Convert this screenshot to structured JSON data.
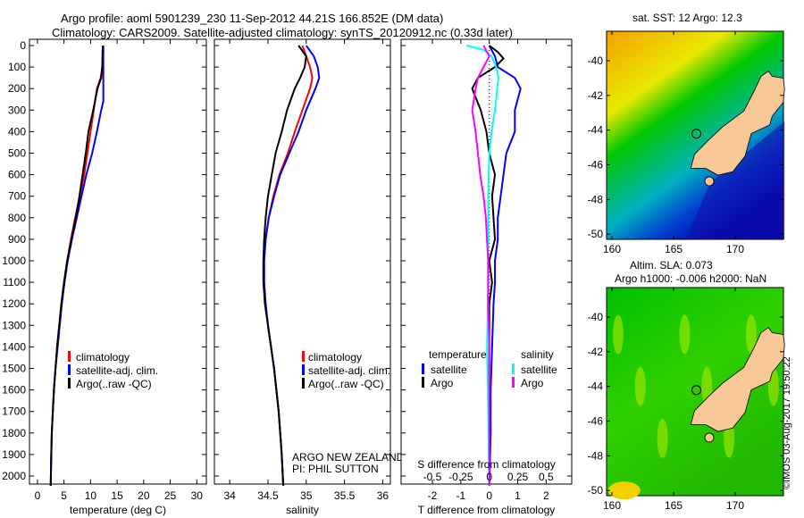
{
  "title_line1": "Argo profile: aoml 5901239_230 11-Sep-2012 44.21S 166.852E (DM data)",
  "title_line2": "Climatology: CARS2009. Satellite-adjusted climatology: synTS_20120912.nc (0.33d later)",
  "colors": {
    "climatology": "#ff0000",
    "satellite": "#0000ff",
    "argo": "#000000",
    "sal_sat": "#00ffff",
    "sal_argo": "#ff00ff"
  },
  "chart_data": [
    {
      "type": "line",
      "name": "temperature",
      "xlabel": "temperature (deg C)",
      "ylabel": "",
      "xlim": [
        -1.5,
        31.8
      ],
      "ylim": [
        2045,
        0
      ],
      "xticks": [
        0,
        5,
        10,
        15,
        20,
        25,
        30
      ],
      "yticks": [
        0,
        100,
        200,
        300,
        400,
        500,
        600,
        700,
        800,
        900,
        1000,
        1100,
        1200,
        1300,
        1400,
        1500,
        1600,
        1700,
        1800,
        1900,
        2000
      ],
      "legend": [
        "climatology",
        "satellite-adj. clim.",
        "Argo(..raw -QC)"
      ],
      "series": [
        {
          "name": "climatology",
          "p": [
            0,
            100,
            150,
            200,
            300,
            400,
            500,
            600,
            700,
            800,
            900,
            1000,
            1100,
            1200,
            1300,
            1400,
            1500,
            1600,
            1700,
            1800,
            1900,
            2045
          ],
          "v": [
            12.3,
            12.2,
            11.9,
            11.2,
            10.6,
            10.0,
            9.4,
            8.8,
            8.0,
            7.1,
            6.3,
            5.6,
            5.0,
            4.5,
            4.1,
            3.7,
            3.4,
            3.1,
            2.9,
            2.7,
            2.6,
            2.5
          ]
        },
        {
          "name": "satellite-adj. clim.",
          "p": [
            0,
            100,
            200,
            260,
            300,
            400,
            500,
            600,
            700,
            800,
            900,
            1000,
            1100,
            1200,
            1300,
            1400,
            1500,
            1600,
            1700,
            1800,
            1900,
            2045
          ],
          "v": [
            12.4,
            12.4,
            12.4,
            12.4,
            12.0,
            11.2,
            10.3,
            9.2,
            8.3,
            7.4,
            6.5,
            5.7,
            5.1,
            4.6,
            4.2,
            3.8,
            3.4,
            3.1,
            2.9,
            2.7,
            2.6,
            2.5
          ]
        },
        {
          "name": "Argo(..raw -QC)",
          "p": [
            0,
            100,
            150,
            200,
            300,
            400,
            500,
            600,
            700,
            800,
            900,
            1000,
            1100,
            1200,
            1300,
            1400,
            1500,
            1600,
            1700,
            1800,
            1900,
            2045
          ],
          "v": [
            12.3,
            12.2,
            12.0,
            11.3,
            10.5,
            9.6,
            9.1,
            8.5,
            7.9,
            7.2,
            6.4,
            5.6,
            5.0,
            4.5,
            4.1,
            3.7,
            3.4,
            3.1,
            2.9,
            2.7,
            2.6,
            2.5
          ]
        }
      ]
    },
    {
      "type": "line",
      "name": "salinity",
      "xlabel": "salinity",
      "xlim": [
        33.8,
        36.1
      ],
      "ylim": [
        2045,
        0
      ],
      "xticks": [
        34,
        34.5,
        35,
        35.5,
        36
      ],
      "legend": [
        "climatology",
        "satellite-adj. clim.",
        "Argo(..raw -QC)"
      ],
      "annotation": [
        "ARGO NEW ZEALAND",
        "PI: PHIL SUTTON"
      ],
      "series": [
        {
          "name": "climatology",
          "p": [
            0,
            50,
            100,
            150,
            200,
            300,
            400,
            500,
            600,
            700,
            800,
            900,
            1000,
            1100,
            1200,
            1300,
            1400,
            1500,
            1600,
            1700,
            1800,
            1900,
            2045
          ],
          "v": [
            34.95,
            35.0,
            35.05,
            35.08,
            35.05,
            34.95,
            34.85,
            34.76,
            34.65,
            34.57,
            34.51,
            34.47,
            34.45,
            34.45,
            34.47,
            34.5,
            34.54,
            34.58,
            34.61,
            34.64,
            34.66,
            34.68,
            34.7
          ]
        },
        {
          "name": "satellite-adj. clim.",
          "p": [
            0,
            50,
            100,
            150,
            200,
            300,
            400,
            500,
            600,
            700,
            800,
            900,
            1000,
            1100,
            1200,
            1300,
            1400,
            1500,
            1600,
            1700,
            1800,
            1900,
            2045
          ],
          "v": [
            35.0,
            35.1,
            35.15,
            35.17,
            35.12,
            35.0,
            34.9,
            34.78,
            34.66,
            34.58,
            34.51,
            34.47,
            34.45,
            34.45,
            34.47,
            34.5,
            34.54,
            34.58,
            34.61,
            34.64,
            34.66,
            34.68,
            34.7
          ]
        },
        {
          "name": "Argo(..raw -QC)",
          "p": [
            0,
            50,
            100,
            150,
            200,
            300,
            400,
            500,
            600,
            700,
            800,
            900,
            1000,
            1100,
            1200,
            1300,
            1400,
            1500,
            1600,
            1700,
            1800,
            1900,
            2045
          ],
          "v": [
            34.9,
            35.0,
            34.98,
            34.92,
            34.85,
            34.75,
            34.68,
            34.6,
            34.55,
            34.5,
            34.47,
            34.45,
            34.44,
            34.44,
            34.46,
            34.5,
            34.54,
            34.58,
            34.61,
            34.64,
            34.66,
            34.68,
            34.7
          ]
        }
      ]
    },
    {
      "type": "line",
      "name": "difference",
      "xlabel": "T difference from climatology",
      "xlabel_top": "S difference from climatology",
      "xlim": [
        -3.1,
        2.9
      ],
      "xticks": [
        -2,
        -1,
        0,
        1,
        2
      ],
      "sxticks": [
        -0.5,
        -0.25,
        0,
        0.25,
        0.5
      ],
      "s_scale": 4,
      "legend": {
        "temperature": "temperature",
        "salinity": "salinity",
        "items": [
          "satellite",
          "Argo",
          "satellite",
          "Argo"
        ]
      },
      "series": [
        {
          "name": "T satellite",
          "color": "satellite",
          "p": [
            0,
            50,
            100,
            150,
            200,
            250,
            300,
            400,
            500,
            600,
            700,
            800,
            900,
            1000,
            1100,
            1200,
            1400,
            1600,
            1800,
            2045
          ],
          "v": [
            0,
            0.2,
            0.3,
            0.9,
            1.1,
            1.0,
            0.9,
            0.9,
            0.6,
            0.5,
            0.4,
            0.3,
            0.3,
            0.2,
            0.2,
            0.15,
            0.1,
            0.05,
            0.05,
            0
          ]
        },
        {
          "name": "T Argo",
          "color": "argo",
          "p": [
            0,
            30,
            60,
            100,
            150,
            200,
            300,
            400,
            500,
            600,
            700,
            800,
            900,
            1000,
            1100,
            1200,
            1400,
            1600,
            1800,
            2045
          ],
          "v": [
            0,
            0.3,
            0.5,
            0.2,
            -0.4,
            -0.6,
            -0.3,
            -0.1,
            0.0,
            0.2,
            0.1,
            0.15,
            0.2,
            0.0,
            0.1,
            0.0,
            0.0,
            0.0,
            0.0,
            0
          ]
        },
        {
          "name": "S satellite",
          "color": "sal_sat",
          "p": [
            0,
            20,
            50,
            100,
            150,
            200,
            300,
            400,
            500,
            700,
            900,
            1100,
            1400,
            1700,
            2045
          ],
          "v": [
            -0.2,
            -0.05,
            0.02,
            0.06,
            0.08,
            0.07,
            0.05,
            0.02,
            0.0,
            -0.01,
            -0.01,
            -0.01,
            -0.02,
            -0.01,
            0
          ]
        },
        {
          "name": "S Argo",
          "color": "sal_argo",
          "p": [
            0,
            50,
            100,
            150,
            200,
            300,
            400,
            500,
            600,
            700,
            800,
            1000,
            1200,
            1400,
            1700,
            2045
          ],
          "v": [
            -0.05,
            0.0,
            -0.05,
            -0.1,
            -0.12,
            -0.15,
            -0.12,
            -0.1,
            -0.08,
            -0.05,
            -0.03,
            -0.01,
            -0.01,
            0.0,
            0.0,
            0
          ]
        }
      ]
    }
  ],
  "map_sst": {
    "title": "sat. SST: 12 Argo: 12.3",
    "lon_ticks": [
      "160",
      "165",
      "170"
    ],
    "lat_ticks": [
      "-40",
      "-42",
      "-44",
      "-46",
      "-48",
      "-50"
    ]
  },
  "map_sla": {
    "title1": "Altim. SLA: 0.073",
    "title2": "Argo h1000: -0.006 h2000: NaN",
    "lon_ticks": [
      "160",
      "165",
      "170"
    ],
    "lat_ticks": [
      "-40",
      "-42",
      "-44",
      "-46",
      "-48",
      "-50"
    ]
  },
  "float_position": {
    "lon": 166.852,
    "lat": -44.21
  },
  "credit": "©IMOS 03-Aug-2017 19:50:22"
}
